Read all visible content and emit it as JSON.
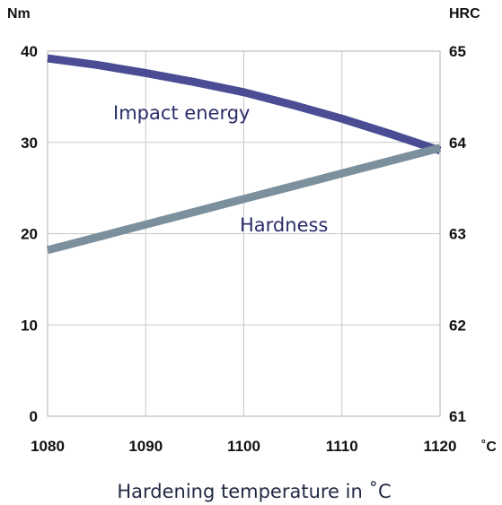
{
  "chart_data": {
    "type": "line",
    "title": "",
    "xlabel": "Hardening temperature in ˚C",
    "x_unit": "˚C",
    "y_left_unit": "Nm",
    "y_right_unit": "HRC",
    "x": [
      1080,
      1085,
      1090,
      1095,
      1100,
      1105,
      1110,
      1115,
      1120
    ],
    "xlim": [
      1080,
      1120
    ],
    "xticks": [
      "1080",
      "1090",
      "1100",
      "1110",
      "1120"
    ],
    "y_left_lim": [
      0,
      40
    ],
    "y_left_ticks": [
      "0",
      "10",
      "20",
      "30",
      "40"
    ],
    "y_right_lim": [
      61,
      65
    ],
    "y_right_ticks": [
      "61",
      "62",
      "63",
      "64",
      "65"
    ],
    "grid": true,
    "series": [
      {
        "name": "Impact energy",
        "axis": "left",
        "color": "#4a4d94",
        "label_color": "#2b2d6b",
        "values": [
          39.2,
          38.5,
          37.6,
          36.6,
          35.5,
          34.1,
          32.6,
          30.9,
          29.1
        ]
      },
      {
        "name": "Hardness",
        "axis": "right",
        "color": "#7b8f9c",
        "label_color": "#2b2d6b",
        "values": [
          62.82,
          62.96,
          63.1,
          63.24,
          63.38,
          63.52,
          63.66,
          63.8,
          63.94
        ]
      }
    ]
  }
}
